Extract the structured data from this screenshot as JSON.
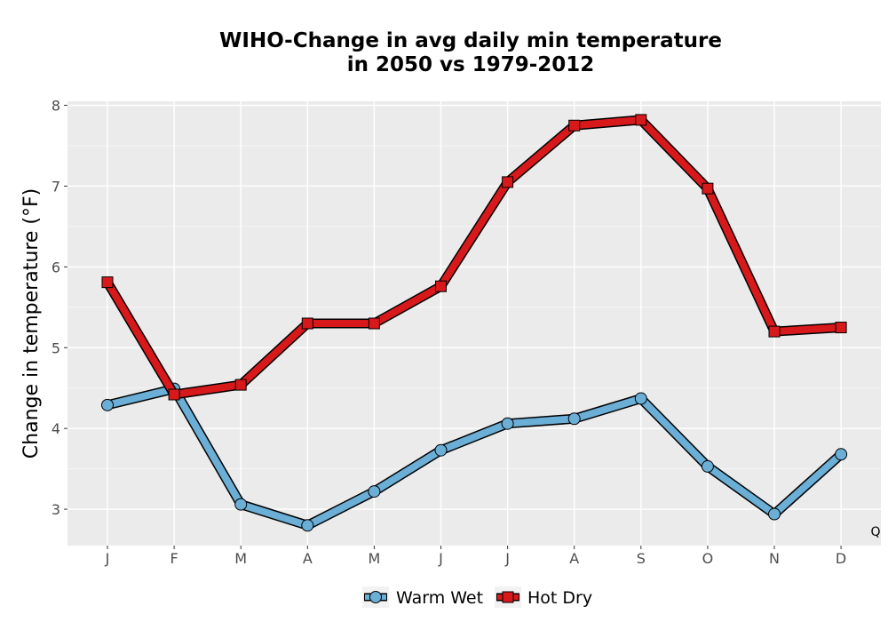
{
  "chart_data": {
    "type": "line",
    "title_line1": "WIHO-Change in avg daily min temperature",
    "title_line2": "in 2050 vs 1979-2012",
    "xlabel": "",
    "ylabel": "Change in temperature (°F)",
    "categories": [
      "J",
      "F",
      "M",
      "A",
      "M",
      "J",
      "J",
      "A",
      "S",
      "O",
      "N",
      "D"
    ],
    "ylim": [
      2.55,
      8.05
    ],
    "yticks": [
      3,
      4,
      5,
      6,
      7,
      8
    ],
    "grid": true,
    "legend_position": "bottom",
    "corner_text": "Q",
    "series": [
      {
        "name": "Warm Wet",
        "marker": "circle",
        "color": "#6baed6",
        "values": [
          4.29,
          4.49,
          3.06,
          2.8,
          3.22,
          3.73,
          4.06,
          4.12,
          4.37,
          3.53,
          2.94,
          3.68
        ]
      },
      {
        "name": "Hot Dry",
        "marker": "square",
        "color": "#d7191c",
        "values": [
          5.81,
          4.42,
          4.54,
          5.3,
          5.3,
          5.76,
          7.05,
          7.75,
          7.82,
          6.97,
          5.2,
          5.25
        ]
      }
    ]
  }
}
